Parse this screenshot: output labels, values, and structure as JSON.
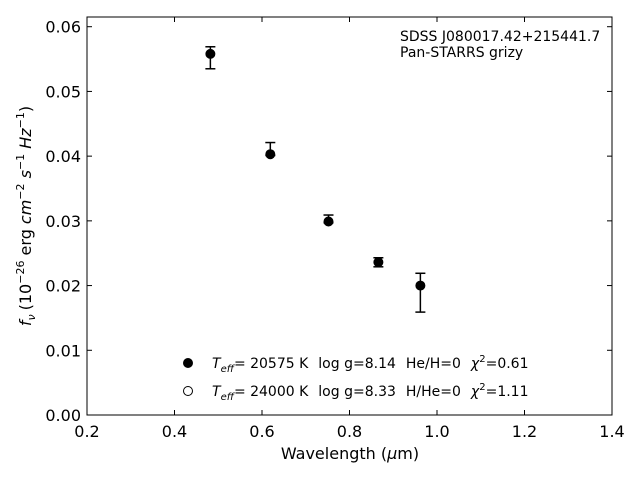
{
  "chart_data": {
    "type": "scatter",
    "annotation": [
      "SDSS J080017.42+215441.7",
      "Pan-STARRS grizy"
    ],
    "xlabel": "Wavelength (μm)",
    "ylabel": "fν (10⁻²⁶ erg cm⁻² s⁻¹ Hz⁻¹)",
    "xlim": [
      0.2,
      1.4
    ],
    "ylim": [
      0.0,
      0.0615
    ],
    "x_ticks": [
      0.2,
      0.4,
      0.6,
      0.8,
      1.0,
      1.2,
      1.4
    ],
    "x_tick_labels": [
      "0.2",
      "0.4",
      "0.6",
      "0.8",
      "1.0",
      "1.2",
      "1.4"
    ],
    "y_ticks": [
      0.0,
      0.01,
      0.02,
      0.03,
      0.04,
      0.05,
      0.06
    ],
    "y_tick_labels": [
      "0.00",
      "0.01",
      "0.02",
      "0.03",
      "0.04",
      "0.05",
      "0.06"
    ],
    "grid": false,
    "legend_position": "lower-center",
    "series": [
      {
        "marker": "filled-circle",
        "label": "T_eff= 20575 K  log g=8.14  He/H=0  χ²=0.61",
        "x": [
          0.482,
          0.619,
          0.752,
          0.866,
          0.962
        ],
        "y": [
          0.0558,
          0.0403,
          0.0299,
          0.0236,
          0.02
        ]
      },
      {
        "marker": "open-circle",
        "label": "T_eff= 24000 K  log g=8.33  H/He=0  χ²=1.11",
        "x": [],
        "y": []
      }
    ],
    "error_bars": {
      "x": [
        0.482,
        0.619,
        0.752,
        0.866,
        0.962
      ],
      "y": [
        0.0552,
        0.0411,
        0.0303,
        0.0236,
        0.0189
      ],
      "err": [
        0.0017,
        0.001,
        0.0006,
        0.0007,
        0.003
      ]
    },
    "legend": [
      {
        "marker": "filled-circle",
        "teff_prefix": "T",
        "teff_sub": "eff",
        "teff_value": "= 20575 K",
        "logg": "log g=8.14",
        "ratio": "He/H=0",
        "chi_prefix": "χ",
        "chi_sup": "2",
        "chi_value": "=0.61"
      },
      {
        "marker": "open-circle",
        "teff_prefix": "T",
        "teff_sub": "eff",
        "teff_value": "= 24000 K",
        "logg": "log g=8.33",
        "ratio": "H/He=0",
        "chi_prefix": "χ",
        "chi_sup": "2",
        "chi_value": "=1.11"
      }
    ],
    "ylabel_parts": {
      "f": "f",
      "f_sub": "ν",
      "open": "(10",
      "exp1": "−26",
      "erg": " erg ",
      "cm": "cm",
      "exp2": "−2",
      "s": " s",
      "exp3": "−1",
      "hz": " Hz",
      "exp4": "−1",
      "close": ")"
    },
    "xlabel_parts": {
      "main": "Wavelength (",
      "mu": "μ",
      "unit": "m)"
    }
  }
}
